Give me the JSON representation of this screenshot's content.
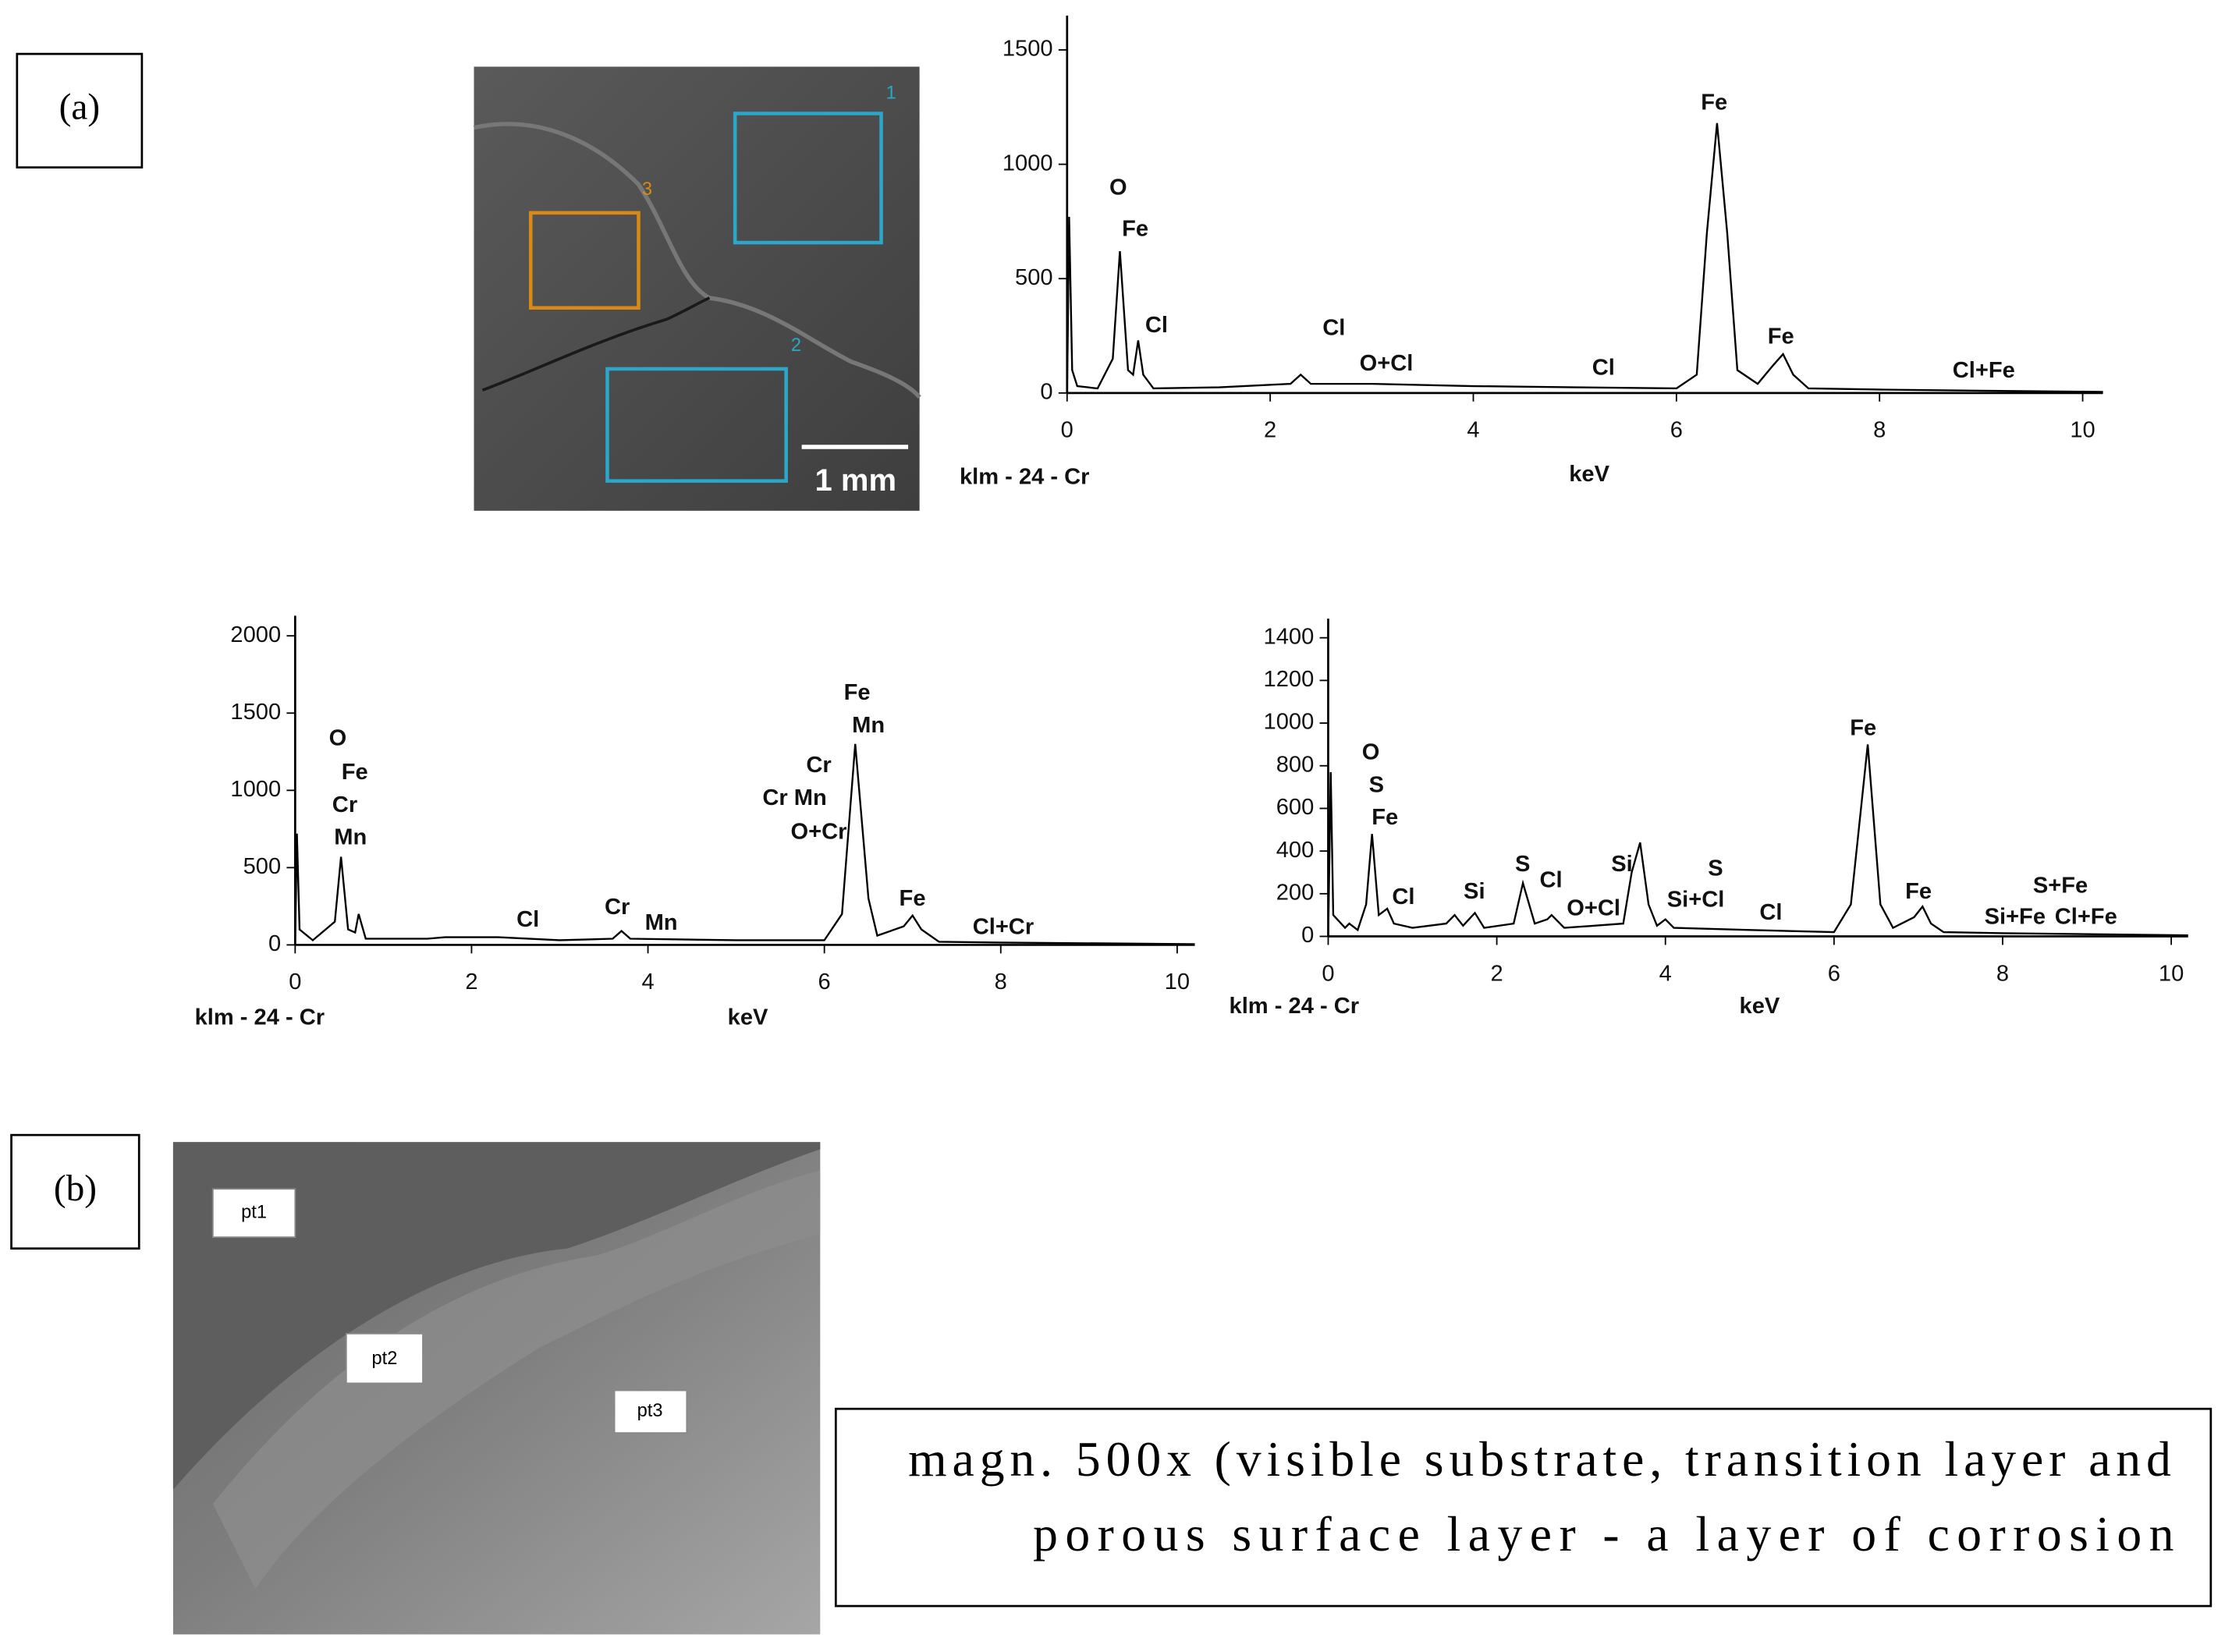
{
  "panels": {
    "a": "(a)",
    "b": "(b)"
  },
  "sem_image_a": {
    "regions": [
      "1",
      "2",
      "3"
    ],
    "scale_bar": "1 mm"
  },
  "sem_image_b": {
    "points": [
      "pt1",
      "pt2",
      "pt3"
    ]
  },
  "caption": {
    "lines": [
      "magn. 500x (visible substrate, transition layer and",
      "porous surface layer - a layer of corrosion"
    ]
  },
  "chart_data": [
    {
      "type": "line",
      "color": "#000000",
      "xlabel": "keV",
      "source_label": "klm - 24 - Cr",
      "x": [
        0,
        0.02,
        0.05,
        0.1,
        0.3,
        0.45,
        0.52,
        0.6,
        0.65,
        0.7,
        0.75,
        0.85,
        1.5,
        2.2,
        2.3,
        2.4,
        3,
        4,
        5,
        6.0,
        6.2,
        6.3,
        6.4,
        6.5,
        6.6,
        6.8,
        6.95,
        7.05,
        7.15,
        7.3,
        8,
        9,
        10.2
      ],
      "values": [
        0,
        770,
        100,
        30,
        20,
        150,
        620,
        100,
        80,
        230,
        80,
        20,
        25,
        40,
        80,
        40,
        40,
        30,
        25,
        20,
        80,
        700,
        1180,
        700,
        100,
        40,
        120,
        170,
        80,
        20,
        15,
        10,
        5
      ],
      "xlim": [
        0,
        10.2
      ],
      "ylim": [
        0,
        1650
      ],
      "xticks": [
        0,
        2,
        4,
        6,
        8,
        10
      ],
      "yticks": [
        0,
        500,
        1000,
        1500
      ],
      "annotations": [
        "O",
        "Fe",
        "Cl",
        "Cl",
        "O+Cl",
        "Cl",
        "Fe",
        "Fe",
        "Cl+Fe"
      ]
    },
    {
      "type": "line",
      "color": "#000000",
      "xlabel": "keV",
      "source_label": "klm - 24 - Cr",
      "x": [
        0,
        0.02,
        0.05,
        0.2,
        0.45,
        0.52,
        0.6,
        0.68,
        0.72,
        0.8,
        1.5,
        1.7,
        2.3,
        3,
        3.6,
        3.7,
        3.8,
        5,
        6.0,
        6.2,
        6.35,
        6.5,
        6.6,
        6.9,
        7.0,
        7.1,
        7.3,
        8,
        10.2
      ],
      "values": [
        0,
        720,
        100,
        30,
        150,
        570,
        100,
        80,
        200,
        40,
        40,
        50,
        50,
        30,
        40,
        90,
        40,
        30,
        30,
        200,
        1300,
        300,
        60,
        120,
        190,
        100,
        20,
        15,
        5
      ],
      "xlim": [
        0,
        10.2
      ],
      "ylim": [
        0,
        2130
      ],
      "xticks": [
        0,
        2,
        4,
        6,
        8,
        10
      ],
      "yticks": [
        0,
        500,
        1000,
        1500,
        2000
      ],
      "annotations": [
        "O",
        "Fe",
        "Cr",
        "Mn",
        "Cl",
        "Cr",
        "Mn",
        "Cr",
        "Cr Mn",
        "O+Cr",
        "Fe",
        "Mn",
        "Fe",
        "Cl+Cr"
      ]
    },
    {
      "type": "line",
      "color": "#000000",
      "xlabel": "keV",
      "source_label": "klm - 24 - Cr",
      "x": [
        0,
        0.03,
        0.06,
        0.2,
        0.25,
        0.35,
        0.45,
        0.52,
        0.6,
        0.7,
        0.78,
        1.0,
        1.4,
        1.5,
        1.6,
        1.74,
        1.85,
        2.2,
        2.31,
        2.45,
        2.6,
        2.65,
        2.8,
        3.5,
        3.6,
        3.7,
        3.8,
        3.9,
        4.0,
        4.1,
        5,
        6.0,
        6.2,
        6.4,
        6.55,
        6.7,
        6.95,
        7.05,
        7.15,
        7.3,
        8,
        10.2
      ],
      "values": [
        0,
        770,
        100,
        40,
        60,
        30,
        150,
        480,
        100,
        130,
        60,
        40,
        60,
        100,
        50,
        110,
        40,
        60,
        250,
        60,
        80,
        100,
        40,
        60,
        300,
        440,
        150,
        50,
        80,
        40,
        30,
        20,
        150,
        900,
        150,
        40,
        90,
        140,
        60,
        20,
        15,
        5
      ],
      "xlim": [
        0,
        10.2
      ],
      "ylim": [
        0,
        1490
      ],
      "xticks": [
        0,
        2,
        4,
        6,
        8,
        10
      ],
      "yticks": [
        0,
        200,
        400,
        600,
        800,
        1000,
        1200,
        1400
      ],
      "annotations": [
        "O",
        "S",
        "Fe",
        "Cl",
        "Si",
        "S",
        "Cl",
        "O+Cl",
        "Si",
        "S",
        "Si+Cl",
        "Cl",
        "Fe",
        "Fe",
        "S+Fe",
        "Si+Fe",
        "Cl+Fe"
      ]
    }
  ]
}
